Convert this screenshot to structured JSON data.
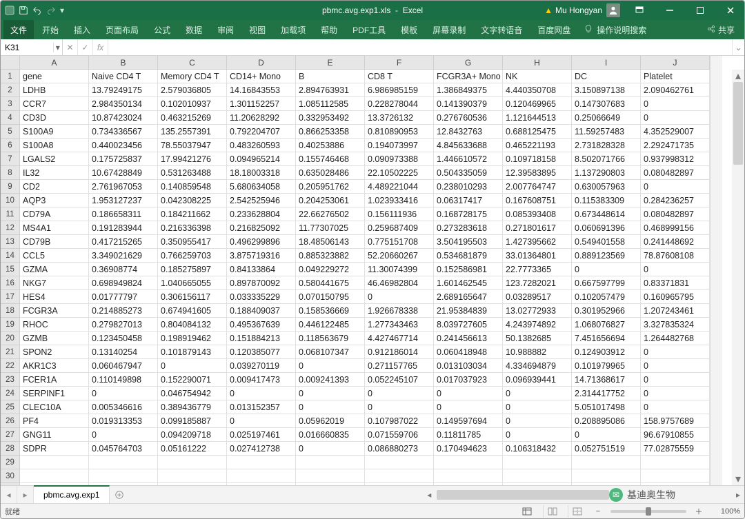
{
  "title": {
    "filename": "pbmc.avg.exp1.xls",
    "app": "Excel"
  },
  "user": {
    "name": "Mu Hongyan"
  },
  "ribbon": {
    "file": "文件",
    "tabs": [
      "开始",
      "插入",
      "页面布局",
      "公式",
      "数据",
      "审阅",
      "视图",
      "加载项",
      "帮助",
      "PDF工具",
      "模板",
      "屏幕录制",
      "文字转语音",
      "百度网盘"
    ],
    "tellme": "操作说明搜索",
    "share": "共享"
  },
  "namebox": {
    "value": "K31"
  },
  "sheets": {
    "active": "pbmc.avg.exp1"
  },
  "statusbar": {
    "ready": "就绪",
    "zoom": "100%"
  },
  "colors": {
    "ribbon_bg": "#217346",
    "title_bg": "#1a6f46",
    "header_bg": "#e6e6e6",
    "gridline": "#e0e0e0",
    "tab_accent": "#217346"
  },
  "sheet": {
    "columns": [
      "A",
      "B",
      "C",
      "D",
      "E",
      "F",
      "G",
      "H",
      "I",
      "J"
    ],
    "header_row": [
      "gene",
      "Naive CD4 T",
      "Memory CD4 T",
      "CD14+ Mono",
      "B",
      "CD8 T",
      "FCGR3A+ Mono",
      "NK",
      "DC",
      "Platelet"
    ],
    "rows": [
      [
        "LDHB",
        "13.79249175",
        "2.579036805",
        "14.16843553",
        "2.894763931",
        "6.986985159",
        "1.386849375",
        "4.440350708",
        "3.150897138",
        "2.090462761"
      ],
      [
        "CCR7",
        "2.984350134",
        "0.102010937",
        "1.301152257",
        "1.085112585",
        "0.228278044",
        "0.141390379",
        "0.120469965",
        "0.147307683",
        "0"
      ],
      [
        "CD3D",
        "10.87423024",
        "0.463215269",
        "11.20628292",
        "0.332953492",
        "13.3726132",
        "0.276760536",
        "1.121644513",
        "0.25066649",
        "0"
      ],
      [
        "S100A9",
        "0.734336567",
        "135.2557391",
        "0.792204707",
        "0.866253358",
        "0.810890953",
        "12.8432763",
        "0.688125475",
        "11.59257483",
        "4.352529007"
      ],
      [
        "S100A8",
        "0.440023456",
        "78.55037947",
        "0.483260593",
        "0.40253886",
        "0.194073997",
        "4.845633688",
        "0.465221193",
        "2.731828328",
        "2.292471735"
      ],
      [
        "LGALS2",
        "0.175725837",
        "17.99421276",
        "0.094965214",
        "0.155746468",
        "0.090973388",
        "1.446610572",
        "0.109718158",
        "8.502071766",
        "0.937998312"
      ],
      [
        "IL32",
        "10.67428849",
        "0.531263488",
        "18.18003318",
        "0.635028486",
        "22.10502225",
        "0.504335059",
        "12.39583895",
        "1.137290803",
        "0.080482897"
      ],
      [
        "CD2",
        "2.761967053",
        "0.140859548",
        "5.680634058",
        "0.205951762",
        "4.489221044",
        "0.238010293",
        "2.007764747",
        "0.630057963",
        "0"
      ],
      [
        "AQP3",
        "1.953127237",
        "0.042308225",
        "2.542525946",
        "0.204253061",
        "1.023933416",
        "0.06317417",
        "0.167608751",
        "0.115383309",
        "0.284236257"
      ],
      [
        "CD79A",
        "0.186658311",
        "0.184211662",
        "0.233628804",
        "22.66276502",
        "0.156111936",
        "0.168728175",
        "0.085393408",
        "0.673448614",
        "0.080482897"
      ],
      [
        "MS4A1",
        "0.191283944",
        "0.216336398",
        "0.216825092",
        "11.77307025",
        "0.259687409",
        "0.273283618",
        "0.271801617",
        "0.060691396",
        "0.468999156"
      ],
      [
        "CD79B",
        "0.417215265",
        "0.350955417",
        "0.496299896",
        "18.48506143",
        "0.775151708",
        "3.504195503",
        "1.427395662",
        "0.549401558",
        "0.241448692"
      ],
      [
        "CCL5",
        "3.349021629",
        "0.766259703",
        "3.875719316",
        "0.885323882",
        "52.20660267",
        "0.534681879",
        "33.01364801",
        "0.889123569",
        "78.87608108"
      ],
      [
        "GZMA",
        "0.36908774",
        "0.185275897",
        "0.84133864",
        "0.049229272",
        "11.30074399",
        "0.152586981",
        "22.7773365",
        "0",
        "0"
      ],
      [
        "NKG7",
        "0.698949824",
        "1.040665055",
        "0.897870092",
        "0.580441675",
        "46.46982804",
        "1.601462545",
        "123.7282021",
        "0.667597799",
        "0.83371831"
      ],
      [
        "HES4",
        "0.01777797",
        "0.306156117",
        "0.033335229",
        "0.070150795",
        "0",
        "2.689165647",
        "0.03289517",
        "0.102057479",
        "0.160965795"
      ],
      [
        "FCGR3A",
        "0.214885273",
        "0.674941605",
        "0.188409037",
        "0.158536669",
        "1.926678338",
        "21.95384839",
        "13.02772933",
        "0.301952966",
        "1.207243461"
      ],
      [
        "RHOC",
        "0.279827013",
        "0.804084132",
        "0.495367639",
        "0.446122485",
        "1.277343463",
        "8.039727605",
        "4.243974892",
        "1.068076827",
        "3.327835324"
      ],
      [
        "GZMB",
        "0.123450458",
        "0.198919462",
        "0.151884213",
        "0.118563679",
        "4.427467714",
        "0.241456613",
        "50.1382685",
        "7.451656694",
        "1.264482768"
      ],
      [
        "SPON2",
        "0.13140254",
        "0.101879143",
        "0.120385077",
        "0.068107347",
        "0.912186014",
        "0.060418948",
        "10.988882",
        "0.124903912",
        "0"
      ],
      [
        "AKR1C3",
        "0.060467947",
        "0",
        "0.039270119",
        "0",
        "0.271157765",
        "0.013103034",
        "4.334694879",
        "0.101979965",
        "0"
      ],
      [
        "FCER1A",
        "0.110149898",
        "0.152290071",
        "0.009417473",
        "0.009241393",
        "0.052245107",
        "0.017037923",
        "0.096939441",
        "14.71368617",
        "0"
      ],
      [
        "SERPINF1",
        "0",
        "0.046754942",
        "0",
        "0",
        "0",
        "0",
        "0",
        "2.314417752",
        "0"
      ],
      [
        "CLEC10A",
        "0.005346616",
        "0.389436779",
        "0.013152357",
        "0",
        "0",
        "0",
        "0",
        "5.051017498",
        "0"
      ],
      [
        "PF4",
        "0.019313353",
        "0.099185887",
        "0",
        "0.05962019",
        "0.107987022",
        "0.149597694",
        "0",
        "0.208895086",
        "158.9757689"
      ],
      [
        "GNG11",
        "0",
        "0.094209718",
        "0.025197461",
        "0.016660835",
        "0.071559706",
        "0.11811785",
        "0",
        "0",
        "96.67910855"
      ],
      [
        "SDPR",
        "0.045764703",
        "0.05161222",
        "0.027412738",
        "0",
        "0.086880273",
        "0.170494623",
        "0.106318432",
        "0.052751519",
        "77.02875559"
      ]
    ]
  },
  "watermark": {
    "text": "基迪奥生物"
  }
}
